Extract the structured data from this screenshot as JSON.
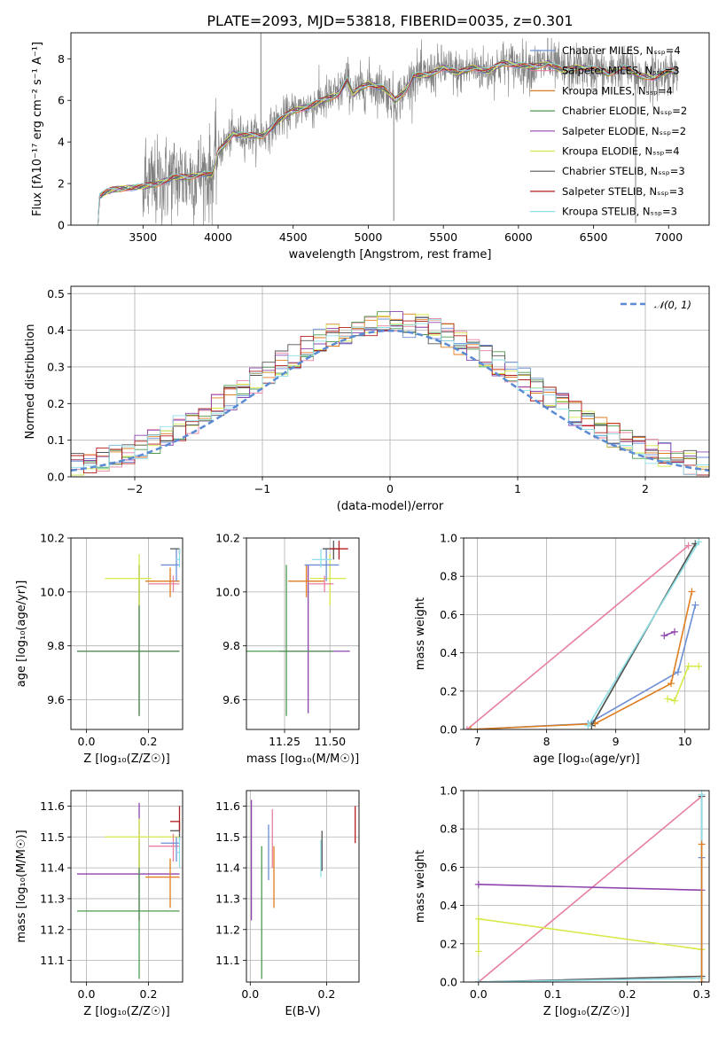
{
  "figure": {
    "title": "PLATE=2093, MJD=53818, FIBERID=0035, z=0.301",
    "axis_text": {
      "spec_x": "wavelength [Angstrom, rest frame]",
      "spec_y": "Flux [fλ10⁻¹⁷ erg cm⁻² s⁻¹ A⁻¹]",
      "hist_x": "(data-model)/error",
      "hist_y": "Normed distribution",
      "p3_x": "Z [log₁₀(Z/Z☉)]",
      "p3_y": "age  [log₁₀(age/yr)]",
      "p4_x": "mass [log₁₀(M/M☉)]",
      "p5_x": "age  [log₁₀(age/yr)]",
      "p5_y": "mass weight",
      "p6_x": "Z [log₁₀(Z/Z☉)]",
      "p6_y": "mass [log₁₀(M/M☉)]",
      "p7_x": "E(B-V)",
      "p8_x": "Z [log₁₀(Z/Z☉)]",
      "p8_y": "mass weight"
    },
    "gaussian_label": "𝒩(0, 1)"
  },
  "chart_data": [
    {
      "type": "line",
      "panel": "spectrum",
      "xlabel": "wavelength [Angstrom, rest frame]",
      "ylabel": "Flux [fλ10⁻¹⁷ erg cm⁻² s⁻¹ A⁻¹]",
      "xlim": [
        3020,
        7270
      ],
      "ylim": [
        0,
        9.25
      ],
      "xticks": [
        3500,
        4000,
        4500,
        5000,
        5500,
        6000,
        6500,
        7000
      ],
      "yticks": [
        0,
        2,
        4,
        6,
        8
      ],
      "grid": false,
      "legend_position": "top-right",
      "data_x_range": [
        3200,
        7060
      ],
      "data_shape_points": [
        [
          3200,
          0
        ],
        [
          3210,
          1.4
        ],
        [
          3260,
          1.6
        ],
        [
          3300,
          1.7
        ],
        [
          3400,
          1.8
        ],
        [
          3500,
          1.85
        ],
        [
          3600,
          2.0
        ],
        [
          3700,
          2.3
        ],
        [
          3800,
          2.3
        ],
        [
          3900,
          2.5
        ],
        [
          3960,
          2.4
        ],
        [
          4000,
          3.5
        ],
        [
          4100,
          4.4
        ],
        [
          4200,
          4.3
        ],
        [
          4300,
          4.3
        ],
        [
          4400,
          5.0
        ],
        [
          4500,
          5.5
        ],
        [
          4600,
          5.7
        ],
        [
          4700,
          6.0
        ],
        [
          4800,
          6.3
        ],
        [
          4860,
          7.0
        ],
        [
          4900,
          6.3
        ],
        [
          4950,
          6.6
        ],
        [
          5000,
          6.8
        ],
        [
          5100,
          6.6
        ],
        [
          5180,
          6.0
        ],
        [
          5250,
          6.5
        ],
        [
          5300,
          7.2
        ],
        [
          5400,
          7.2
        ],
        [
          5500,
          7.6
        ],
        [
          5600,
          7.3
        ],
        [
          5700,
          7.6
        ],
        [
          5800,
          7.4
        ],
        [
          5900,
          7.8
        ],
        [
          6000,
          7.7
        ],
        [
          6100,
          7.6
        ],
        [
          6200,
          7.8
        ],
        [
          6300,
          7.4
        ],
        [
          6400,
          7.6
        ],
        [
          6500,
          7.5
        ],
        [
          6600,
          7.3
        ],
        [
          6700,
          7.6
        ],
        [
          6800,
          7.2
        ],
        [
          6900,
          7.1
        ],
        [
          7000,
          7.4
        ],
        [
          7060,
          7.4
        ]
      ],
      "series": [
        {
          "name": "Chabrier MILES, N_SSP=4",
          "color": "#6d8fd6"
        },
        {
          "name": "Salpeter MILES, N_SSP=3",
          "color": "#e8809f"
        },
        {
          "name": "Kroupa MILES, N_SSP=4",
          "color": "#e07d1e"
        },
        {
          "name": "Chabrier ELODIE, N_SSP=2",
          "color": "#4e9a4e"
        },
        {
          "name": "Salpeter ELODIE, N_SSP=2",
          "color": "#8e44ad"
        },
        {
          "name": "Kroupa ELODIE, N_SSP=4",
          "color": "#d7e94a"
        },
        {
          "name": "Chabrier STELIB, N_SSP=3",
          "color": "#555555"
        },
        {
          "name": "Salpeter STELIB, N_SSP=3",
          "color": "#b21e1e"
        },
        {
          "name": "Kroupa STELIB, N_SSP=3",
          "color": "#8fdfe8"
        }
      ],
      "data_color": "#808080"
    },
    {
      "type": "line",
      "panel": "residual-histogram",
      "xlabel": "(data-model)/error",
      "ylabel": "Normed distribution",
      "xlim": [
        -2.5,
        2.5
      ],
      "ylim": [
        0,
        0.52
      ],
      "xticks": [
        -2,
        -1,
        0,
        1,
        2
      ],
      "yticks": [
        0.0,
        0.1,
        0.2,
        0.3,
        0.4,
        0.5
      ],
      "grid": true,
      "legend_position": "top-right",
      "bin_width": 0.1,
      "bin_range": [
        -2.5,
        2.5
      ],
      "gaussian": {
        "name": "N(0,1)",
        "color": "#5b8bd4"
      }
    },
    {
      "type": "scatter",
      "panel": "age-vs-Z",
      "xlabel": "Z [log10(Z/Zsun)]",
      "ylabel": "age [log10(age/yr)]",
      "xlim": [
        -0.05,
        0.31
      ],
      "ylim": [
        9.49,
        10.2
      ],
      "xticks": [
        0.0,
        0.2
      ],
      "yticks": [
        9.6,
        9.8,
        10.0,
        10.2
      ],
      "grid": true,
      "points": [
        {
          "x": 0.17,
          "y": 9.78,
          "xerr": [
            0.2,
            0.13
          ],
          "yerr": [
            0.24,
            0.32
          ],
          "color": "#8e44ad"
        },
        {
          "x": 0.17,
          "y": 9.78,
          "xerr": [
            0.2,
            0.13
          ],
          "yerr": [
            0.24,
            0.32
          ],
          "color": "#4e9a4e"
        },
        {
          "x": 0.17,
          "y": 10.05,
          "xerr": [
            0.11,
            0.04
          ],
          "yerr": [
            0.1,
            0.09
          ],
          "color": "#d7e94a"
        },
        {
          "x": 0.27,
          "y": 10.04,
          "xerr": [
            0.08,
            0.03
          ],
          "yerr": [
            0.06,
            0.05
          ],
          "color": "#e07d1e"
        },
        {
          "x": 0.28,
          "y": 10.03,
          "xerr": [
            0.08,
            0.02
          ],
          "yerr": [
            0.03,
            0.03
          ],
          "color": "#e8809f"
        },
        {
          "x": 0.29,
          "y": 10.1,
          "xerr": [
            0.05,
            0.01
          ],
          "yerr": [
            0.06,
            0.06
          ],
          "color": "#6d8fd6"
        },
        {
          "x": 0.3,
          "y": 10.16,
          "xerr": [
            0.03,
            0.0
          ],
          "yerr": [
            0.02,
            0.0
          ],
          "color": "#555555"
        },
        {
          "x": 0.3,
          "y": 10.12,
          "xerr": [
            0.01,
            0.0
          ],
          "yerr": [
            0.03,
            0.04
          ],
          "color": "#8fdfe8"
        }
      ]
    },
    {
      "type": "scatter",
      "panel": "age-vs-mass",
      "xlabel": "mass [log10(M/Msun)]",
      "ylabel": "",
      "xlim": [
        11.04,
        11.66
      ],
      "ylim": [
        9.49,
        10.2
      ],
      "xticks": [
        11.25,
        11.5
      ],
      "xtick_labels": [
        "11.25",
        "11.50"
      ],
      "yticks": [
        9.6,
        9.8,
        10.0,
        10.2
      ],
      "grid": true,
      "points": [
        {
          "x": 11.38,
          "y": 9.78,
          "xerr": [
            0.16,
            0.23
          ],
          "yerr": [
            0.23,
            0.32
          ],
          "color": "#8e44ad"
        },
        {
          "x": 11.26,
          "y": 9.78,
          "xerr": [
            0.22,
            0.26
          ],
          "yerr": [
            0.24,
            0.32
          ],
          "color": "#4e9a4e"
        },
        {
          "x": 11.5,
          "y": 10.05,
          "xerr": [
            0.11,
            0.09
          ],
          "yerr": [
            0.1,
            0.09
          ],
          "color": "#d7e94a"
        },
        {
          "x": 11.37,
          "y": 10.04,
          "xerr": [
            0.1,
            0.1
          ],
          "yerr": [
            0.06,
            0.06
          ],
          "color": "#e07d1e"
        },
        {
          "x": 11.47,
          "y": 10.03,
          "xerr": [
            0.09,
            0.05
          ],
          "yerr": [
            0.03,
            0.03
          ],
          "color": "#e8809f"
        },
        {
          "x": 11.48,
          "y": 10.1,
          "xerr": [
            0.12,
            0.07
          ],
          "yerr": [
            0.06,
            0.06
          ],
          "color": "#6d8fd6"
        },
        {
          "x": 11.52,
          "y": 10.16,
          "xerr": [
            0.06,
            0.03
          ],
          "yerr": [
            0.04,
            0.03
          ],
          "color": "#555555"
        },
        {
          "x": 11.55,
          "y": 10.16,
          "xerr": [
            0.05,
            0.05
          ],
          "yerr": [
            0.04,
            0.03
          ],
          "color": "#b21e1e"
        },
        {
          "x": 11.45,
          "y": 10.12,
          "xerr": [
            0.05,
            0.06
          ],
          "yerr": [
            0.03,
            0.04
          ],
          "color": "#8fdfe8"
        }
      ]
    },
    {
      "type": "line",
      "panel": "weight-vs-age",
      "xlabel": "age [log10(age/yr)]",
      "ylabel": "mass weight",
      "xlim": [
        6.8,
        10.35
      ],
      "ylim": [
        0,
        1.0
      ],
      "xticks": [
        7,
        8,
        9,
        10
      ],
      "yticks": [
        0.0,
        0.2,
        0.4,
        0.6,
        0.8,
        1.0
      ],
      "grid": true,
      "series": [
        {
          "name": "Chabrier MILES",
          "color": "#6d8fd6",
          "points": [
            [
              6.9,
              0.0
            ],
            [
              8.6,
              0.03
            ],
            [
              9.9,
              0.3
            ],
            [
              10.15,
              0.65
            ]
          ]
        },
        {
          "name": "Salpeter MILES",
          "color": "#e8809f",
          "points": [
            [
              6.85,
              0.0
            ],
            [
              10.05,
              0.96
            ]
          ]
        },
        {
          "name": "Kroupa MILES",
          "color": "#e07d1e",
          "points": [
            [
              6.9,
              0.0
            ],
            [
              8.7,
              0.03
            ],
            [
              9.8,
              0.24
            ],
            [
              10.1,
              0.72
            ]
          ]
        },
        {
          "name": "Chabrier ELODIE",
          "color": "#4e9a4e",
          "points": [
            [
              8.65,
              0.02
            ],
            [
              10.15,
              0.97
            ]
          ]
        },
        {
          "name": "Salpeter ELODIE",
          "color": "#8e44ad",
          "points": [
            [
              9.7,
              0.49
            ],
            [
              9.85,
              0.51
            ]
          ]
        },
        {
          "name": "Kroupa ELODIE",
          "color": "#d7e94a",
          "points": [
            [
              9.75,
              0.16
            ],
            [
              9.85,
              0.15
            ],
            [
              10.05,
              0.33
            ],
            [
              10.2,
              0.33
            ]
          ]
        },
        {
          "name": "Chabrier STELIB",
          "color": "#555555",
          "points": [
            [
              8.65,
              0.02
            ],
            [
              10.15,
              0.97
            ]
          ]
        },
        {
          "name": "Kroupa STELIB",
          "color": "#8fdfe8",
          "points": [
            [
              8.6,
              0.02
            ],
            [
              10.2,
              0.98
            ]
          ]
        }
      ]
    },
    {
      "type": "scatter",
      "panel": "mass-vs-Z",
      "xlabel": "Z [log10(Z/Zsun)]",
      "ylabel": "mass [log10(M/Msun)]",
      "xlim": [
        -0.05,
        0.31
      ],
      "ylim": [
        11.03,
        11.65
      ],
      "xticks": [
        0.0,
        0.2
      ],
      "yticks": [
        11.1,
        11.2,
        11.3,
        11.4,
        11.5,
        11.6
      ],
      "grid": true,
      "points": [
        {
          "x": 0.17,
          "y": 11.38,
          "xerr": [
            0.2,
            0.13
          ],
          "yerr": [
            0.15,
            0.23
          ],
          "color": "#8e44ad"
        },
        {
          "x": 0.17,
          "y": 11.26,
          "xerr": [
            0.2,
            0.13
          ],
          "yerr": [
            0.22,
            0.23
          ],
          "color": "#4e9a4e"
        },
        {
          "x": 0.17,
          "y": 11.5,
          "xerr": [
            0.11,
            0.13
          ],
          "yerr": [
            0.1,
            0.06
          ],
          "color": "#d7e94a"
        },
        {
          "x": 0.27,
          "y": 11.37,
          "xerr": [
            0.08,
            0.03
          ],
          "yerr": [
            0.1,
            0.06
          ],
          "color": "#e07d1e"
        },
        {
          "x": 0.28,
          "y": 11.47,
          "xerr": [
            0.08,
            0.02
          ],
          "yerr": [
            0.05,
            0.04
          ],
          "color": "#e8809f"
        },
        {
          "x": 0.29,
          "y": 11.48,
          "xerr": [
            0.05,
            0.01
          ],
          "yerr": [
            0.06,
            0.02
          ],
          "color": "#6d8fd6"
        },
        {
          "x": 0.3,
          "y": 11.52,
          "xerr": [
            0.03,
            0.0
          ],
          "yerr": [
            0.03,
            0.03
          ],
          "color": "#555555"
        },
        {
          "x": 0.3,
          "y": 11.55,
          "xerr": [
            0.03,
            0.0
          ],
          "yerr": [
            0.03,
            0.05
          ],
          "color": "#b21e1e"
        },
        {
          "x": 0.3,
          "y": 11.45,
          "xerr": [
            0.01,
            0.0
          ],
          "yerr": [
            0.05,
            0.05
          ],
          "color": "#8fdfe8"
        }
      ]
    },
    {
      "type": "scatter",
      "panel": "mass-vs-EBV",
      "xlabel": "E(B-V)",
      "ylabel": "",
      "xlim": [
        -0.01,
        0.285
      ],
      "ylim": [
        11.03,
        11.65
      ],
      "xticks": [
        0.0,
        0.2
      ],
      "yticks": [
        11.1,
        11.2,
        11.3,
        11.4,
        11.5,
        11.6
      ],
      "grid": true,
      "points": [
        {
          "x": 0.003,
          "y": 11.45,
          "yerr": [
            0.22,
            0.17
          ],
          "color": "#8e44ad"
        },
        {
          "x": 0.03,
          "y": 11.26,
          "yerr": [
            0.22,
            0.21
          ],
          "color": "#4e9a4e"
        },
        {
          "x": 0.048,
          "y": 11.45,
          "yerr": [
            0.09,
            0.09
          ],
          "color": "#6d8fd6"
        },
        {
          "x": 0.058,
          "y": 11.5,
          "yerr": [
            0.1,
            0.09
          ],
          "color": "#e8809f"
        },
        {
          "x": 0.062,
          "y": 11.37,
          "yerr": [
            0.1,
            0.1
          ],
          "color": "#e07d1e"
        },
        {
          "x": 0.185,
          "y": 11.43,
          "yerr": [
            0.06,
            0.06
          ],
          "color": "#8fdfe8"
        },
        {
          "x": 0.188,
          "y": 11.45,
          "yerr": [
            0.06,
            0.07
          ],
          "color": "#555555"
        },
        {
          "x": 0.275,
          "y": 11.54,
          "yerr": [
            0.06,
            0.06
          ],
          "color": "#b21e1e"
        }
      ]
    },
    {
      "type": "line",
      "panel": "weight-vs-Z",
      "xlabel": "Z [log10(Z/Zsun)]",
      "ylabel": "mass weight",
      "xlim": [
        -0.02,
        0.31
      ],
      "ylim": [
        0,
        1.0
      ],
      "xticks": [
        0.0,
        0.1,
        0.2,
        0.3
      ],
      "yticks": [
        0.0,
        0.2,
        0.4,
        0.6,
        0.8,
        1.0
      ],
      "grid": true,
      "series": [
        {
          "name": "Salpeter MILES",
          "color": "#e8809f",
          "points": [
            [
              0.0,
              0.0
            ],
            [
              0.3,
              0.97
            ]
          ]
        },
        {
          "name": "Salpeter ELODIE",
          "color": "#8e44ad",
          "points": [
            [
              0.0,
              0.51
            ],
            [
              0.3,
              0.48
            ]
          ]
        },
        {
          "name": "Kroupa ELODIE",
          "color": "#d7e94a",
          "points": [
            [
              0.0,
              0.16
            ],
            [
              0.0,
              0.33
            ],
            [
              0.3,
              0.17
            ]
          ]
        },
        {
          "name": "Chabrier STELIB",
          "color": "#555555",
          "points": [
            [
              0.0,
              0.0
            ],
            [
              0.3,
              0.03
            ],
            [
              0.3,
              0.97
            ]
          ]
        },
        {
          "name": "Kroupa STELIB",
          "color": "#8fdfe8",
          "points": [
            [
              0.0,
              0.0
            ],
            [
              0.3,
              0.02
            ],
            [
              0.3,
              0.98
            ]
          ]
        },
        {
          "name": "Chabrier MILES",
          "color": "#6d8fd6",
          "points": [
            [
              0.3,
              0.0
            ],
            [
              0.3,
              0.65
            ]
          ]
        },
        {
          "name": "Kroupa MILES",
          "color": "#e07d1e",
          "points": [
            [
              0.3,
              0.0
            ],
            [
              0.3,
              0.72
            ]
          ]
        }
      ]
    }
  ]
}
